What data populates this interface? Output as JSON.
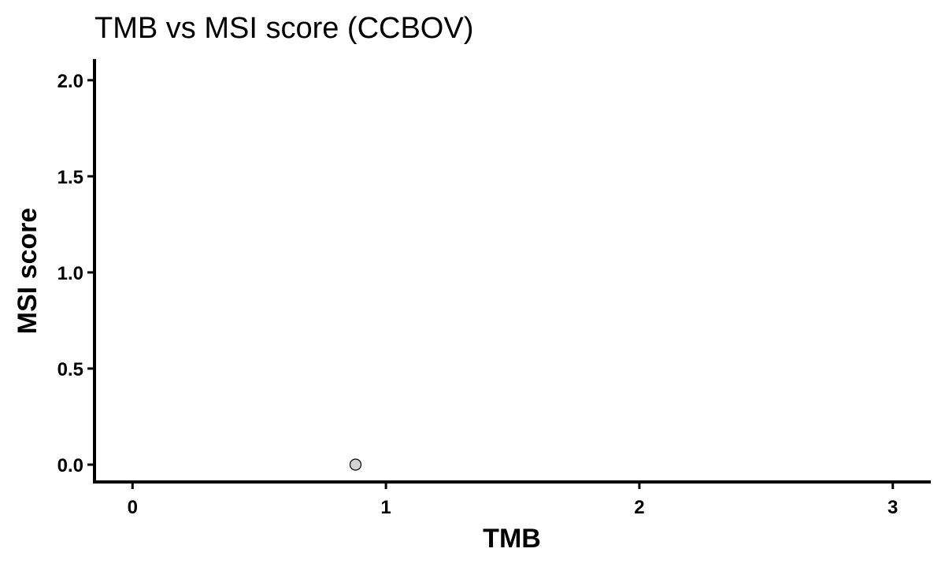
{
  "chart_data": {
    "type": "scatter",
    "title": "TMB vs MSI score (CCBOV)",
    "xlabel": "TMB",
    "ylabel": "MSI score",
    "xlim": [
      -0.15,
      3.15
    ],
    "ylim": [
      -0.09,
      2.11
    ],
    "x_ticks": [
      0,
      1,
      2,
      3
    ],
    "x_tick_labels": [
      "0",
      "1",
      "2",
      "3"
    ],
    "y_ticks": [
      0.0,
      0.5,
      1.0,
      1.5,
      2.0
    ],
    "y_tick_labels": [
      "0.0",
      "0.5",
      "1.0",
      "1.5",
      "2.0"
    ],
    "grid": false,
    "marker_fill": "#d3d3d3",
    "marker_stroke": "#000000",
    "points": [
      {
        "x": 0.88,
        "y": 0.0
      }
    ]
  }
}
